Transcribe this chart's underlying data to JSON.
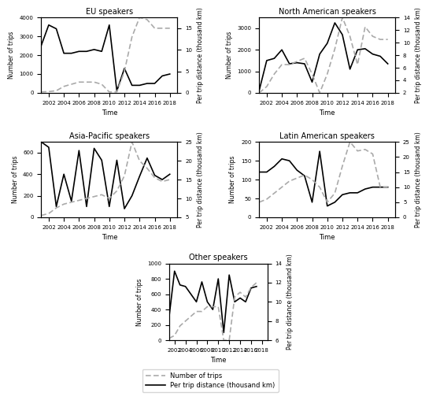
{
  "years": [
    2001,
    2002,
    2003,
    2004,
    2005,
    2006,
    2007,
    2008,
    2009,
    2010,
    2011,
    2012,
    2013,
    2014,
    2015,
    2016,
    2017,
    2018
  ],
  "EU": {
    "title": "EU speakers",
    "trips": [
      2500,
      3600,
      3400,
      2100,
      2100,
      2200,
      2200,
      2300,
      2200,
      3600,
      100,
      1300,
      400,
      400,
      500,
      500,
      900,
      1000
    ],
    "distance": [
      0.2,
      0.3,
      0.5,
      1.5,
      2.0,
      2.5,
      2.5,
      2.5,
      2.0,
      0.2,
      0.2,
      5.0,
      13.0,
      17.5,
      17.0,
      15.0,
      15.0,
      15.0
    ],
    "ylim_trips": [
      0,
      4000
    ],
    "ylim_dist": [
      0.0,
      17.5
    ],
    "yticks_trips": [
      0,
      1000,
      2000,
      3000
    ],
    "yticks_dist": [
      0.0,
      2.5,
      5.0,
      7.5,
      10.0,
      12.5,
      15.0,
      17.5
    ]
  },
  "NA": {
    "title": "North American speakers",
    "trips": [
      100,
      1500,
      1600,
      2000,
      1350,
      1400,
      1350,
      500,
      1800,
      2300,
      3250,
      2700,
      1100,
      2000,
      2050,
      1800,
      1700,
      1350
    ],
    "distance": [
      2.0,
      3.0,
      5.0,
      6.5,
      6.5,
      7.0,
      7.5,
      5.0,
      2.0,
      5.0,
      9.0,
      14.0,
      11.0,
      6.5,
      12.5,
      11.0,
      10.5,
      10.5
    ],
    "ylim_trips": [
      0,
      3500
    ],
    "ylim_dist": [
      2,
      14
    ],
    "yticks_trips": [
      0,
      500,
      1000,
      1500,
      2000,
      2500,
      3000
    ],
    "yticks_dist": [
      2,
      4,
      6,
      8,
      10,
      12,
      14
    ]
  },
  "AP": {
    "title": "Asia-Pacific speakers",
    "trips": [
      700,
      650,
      100,
      400,
      150,
      620,
      100,
      640,
      530,
      100,
      530,
      80,
      200,
      380,
      550,
      390,
      350,
      400
    ],
    "distance": [
      5.5,
      6.0,
      7.5,
      8.5,
      9.0,
      9.5,
      10.0,
      10.5,
      11.0,
      10.0,
      12.0,
      16.0,
      25.0,
      20.0,
      18.0,
      15.5,
      14.5,
      15.0
    ],
    "ylim_trips": [
      0,
      700
    ],
    "ylim_dist": [
      5,
      25
    ],
    "yticks_trips": [
      0,
      100,
      200,
      300,
      400,
      500,
      600,
      700
    ],
    "yticks_dist": [
      10,
      15,
      20,
      25
    ]
  },
  "LA": {
    "title": "Latin American speakers",
    "trips": [
      120,
      120,
      135,
      155,
      150,
      125,
      110,
      40,
      175,
      30,
      40,
      60,
      65,
      65,
      75,
      80,
      80,
      80
    ],
    "distance": [
      5.0,
      6.0,
      8.0,
      10.0,
      12.0,
      13.0,
      14.0,
      12.5,
      10.0,
      5.0,
      8.0,
      17.0,
      25.0,
      22.0,
      22.5,
      21.0,
      10.0,
      10.0
    ],
    "ylim_trips": [
      0,
      200
    ],
    "ylim_dist": [
      0,
      25
    ],
    "yticks_trips": [
      0,
      25,
      50,
      75,
      100,
      125,
      150,
      175
    ],
    "yticks_dist": [
      0,
      5,
      10,
      15,
      20,
      25
    ]
  },
  "Other": {
    "title": "Other speakers",
    "trips": [
      300,
      900,
      720,
      700,
      600,
      500,
      760,
      500,
      400,
      800,
      100,
      850,
      500,
      550,
      500,
      680,
      700,
      null
    ],
    "distance": [
      6.2,
      6.5,
      7.5,
      8.0,
      8.5,
      9.0,
      9.0,
      9.5,
      9.5,
      9.5,
      6.0,
      6.0,
      10.5,
      11.0,
      10.5,
      11.5,
      12.0,
      null
    ],
    "ylim_trips": [
      0,
      1000
    ],
    "ylim_dist": [
      6,
      14
    ],
    "yticks_trips": [
      0,
      200,
      400,
      600,
      800
    ],
    "yticks_dist": [
      6,
      8,
      10,
      12,
      14
    ]
  },
  "line_color_trips": "#aaaaaa",
  "line_color_dist": "#000000",
  "legend_label_trips": "Number of trips",
  "legend_label_dist": "Per trip distance (thousand km)",
  "xlabel": "Time",
  "ylabel_left": "Number of trips",
  "ylabel_right": "Per trip distance (thousand km)"
}
